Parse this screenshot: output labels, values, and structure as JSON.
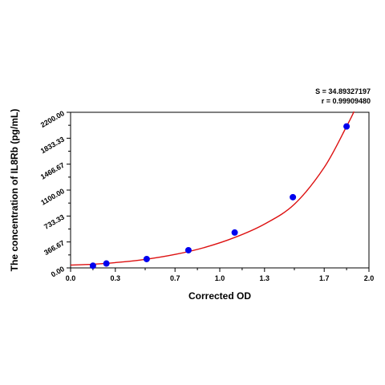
{
  "chart_data": {
    "type": "scatter",
    "xlabel": "Corrected OD",
    "ylabel": "The concentration of IL8Rb (pg/mL)",
    "xlim": [
      0.0,
      2.0
    ],
    "ylim": [
      0.0,
      2200.0
    ],
    "x_ticks": [
      "0.0",
      "0.3",
      "0.7",
      "1.0",
      "1.3",
      "1.7",
      "2.0"
    ],
    "y_ticks": [
      "0.00",
      "366.67",
      "733.33",
      "1100.00",
      "1466.67",
      "1833.33",
      "2200.00"
    ],
    "grid": false,
    "legend": "none",
    "series": [
      {
        "values": [
          {
            "x": 0.15,
            "y": 31
          },
          {
            "x": 0.24,
            "y": 62
          },
          {
            "x": 0.51,
            "y": 125
          },
          {
            "x": 0.79,
            "y": 250
          },
          {
            "x": 1.1,
            "y": 500
          },
          {
            "x": 1.49,
            "y": 1000
          },
          {
            "x": 1.85,
            "y": 2000
          }
        ],
        "color": "#0000ee"
      }
    ],
    "fit_curve": {
      "color": "#dd1111",
      "points": [
        {
          "x": 0.0,
          "y": 40
        },
        {
          "x": 0.15,
          "y": 52
        },
        {
          "x": 0.3,
          "y": 75
        },
        {
          "x": 0.5,
          "y": 120
        },
        {
          "x": 0.7,
          "y": 190
        },
        {
          "x": 0.9,
          "y": 290
        },
        {
          "x": 1.1,
          "y": 430
        },
        {
          "x": 1.3,
          "y": 620
        },
        {
          "x": 1.5,
          "y": 900
        },
        {
          "x": 1.7,
          "y": 1420
        },
        {
          "x": 1.85,
          "y": 2000
        },
        {
          "x": 1.9,
          "y": 2210
        }
      ]
    },
    "annotations": {
      "s_value": "S = 34.89327197",
      "r_value": "r = 0.99909480"
    }
  }
}
